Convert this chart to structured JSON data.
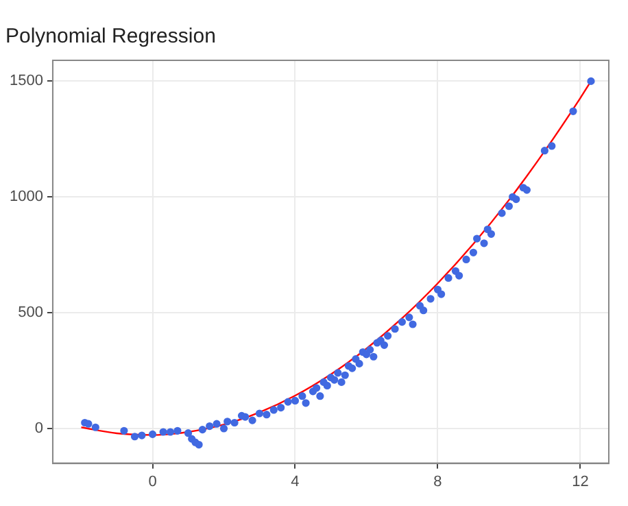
{
  "chart_data": {
    "type": "scatter",
    "title": "Polynomial Regression",
    "xlim": [
      -2.8,
      12.8
    ],
    "xticks": [
      0,
      4,
      8,
      12
    ],
    "ylim": [
      -150,
      1590
    ],
    "yticks": [
      0,
      500,
      1000,
      1500
    ],
    "grid": true,
    "legend": false,
    "marker": "circle",
    "series": [
      {
        "color": "#4169e1",
        "x": [
          -1.9,
          -1.8,
          -1.6,
          -0.8,
          -0.5,
          -0.3,
          0,
          0.3,
          0.5,
          0.7,
          1.0,
          1.1,
          1.2,
          1.3,
          1.4,
          1.6,
          1.8,
          2.0,
          2.1,
          2.3,
          2.5,
          2.6,
          2.8,
          3.0,
          3.2,
          3.4,
          3.6,
          3.8,
          4.0,
          4.2,
          4.3,
          4.5,
          4.6,
          4.7,
          4.8,
          4.9,
          5.0,
          5.1,
          5.2,
          5.3,
          5.4,
          5.5,
          5.6,
          5.7,
          5.8,
          5.9,
          6.0,
          6.1,
          6.2,
          6.3,
          6.4,
          6.5,
          6.6,
          6.8,
          7.0,
          7.2,
          7.3,
          7.5,
          7.6,
          7.8,
          8.0,
          8.1,
          8.3,
          8.5,
          8.6,
          8.8,
          9.0,
          9.1,
          9.3,
          9.4,
          9.5,
          9.8,
          10.0,
          10.1,
          10.2,
          10.4,
          10.5,
          11.0,
          11.2,
          11.8,
          12.3
        ],
        "values": [
          25,
          20,
          5,
          -10,
          -35,
          -30,
          -25,
          -15,
          -15,
          -10,
          -20,
          -45,
          -60,
          -70,
          -5,
          10,
          20,
          0,
          30,
          25,
          55,
          50,
          35,
          65,
          60,
          80,
          90,
          115,
          120,
          140,
          110,
          160,
          175,
          140,
          200,
          185,
          220,
          210,
          240,
          200,
          230,
          270,
          260,
          300,
          280,
          330,
          320,
          340,
          310,
          370,
          380,
          360,
          400,
          430,
          460,
          480,
          450,
          530,
          510,
          560,
          600,
          580,
          650,
          680,
          660,
          730,
          760,
          820,
          800,
          860,
          840,
          930,
          960,
          1000,
          990,
          1040,
          1030,
          1200,
          1220,
          1370,
          1500
        ]
      },
      {
        "type": "line",
        "color": "#ff0000",
        "marker": "none",
        "x": [
          -2,
          -1,
          0,
          1,
          2,
          3,
          4,
          5,
          6,
          7,
          8,
          9,
          10,
          11,
          12,
          12.3
        ],
        "values": [
          5,
          -21,
          -28,
          -15,
          17,
          70,
          142,
          234,
          345,
          476,
          627,
          797,
          987,
          1198,
          1427,
          1500
        ]
      }
    ]
  }
}
